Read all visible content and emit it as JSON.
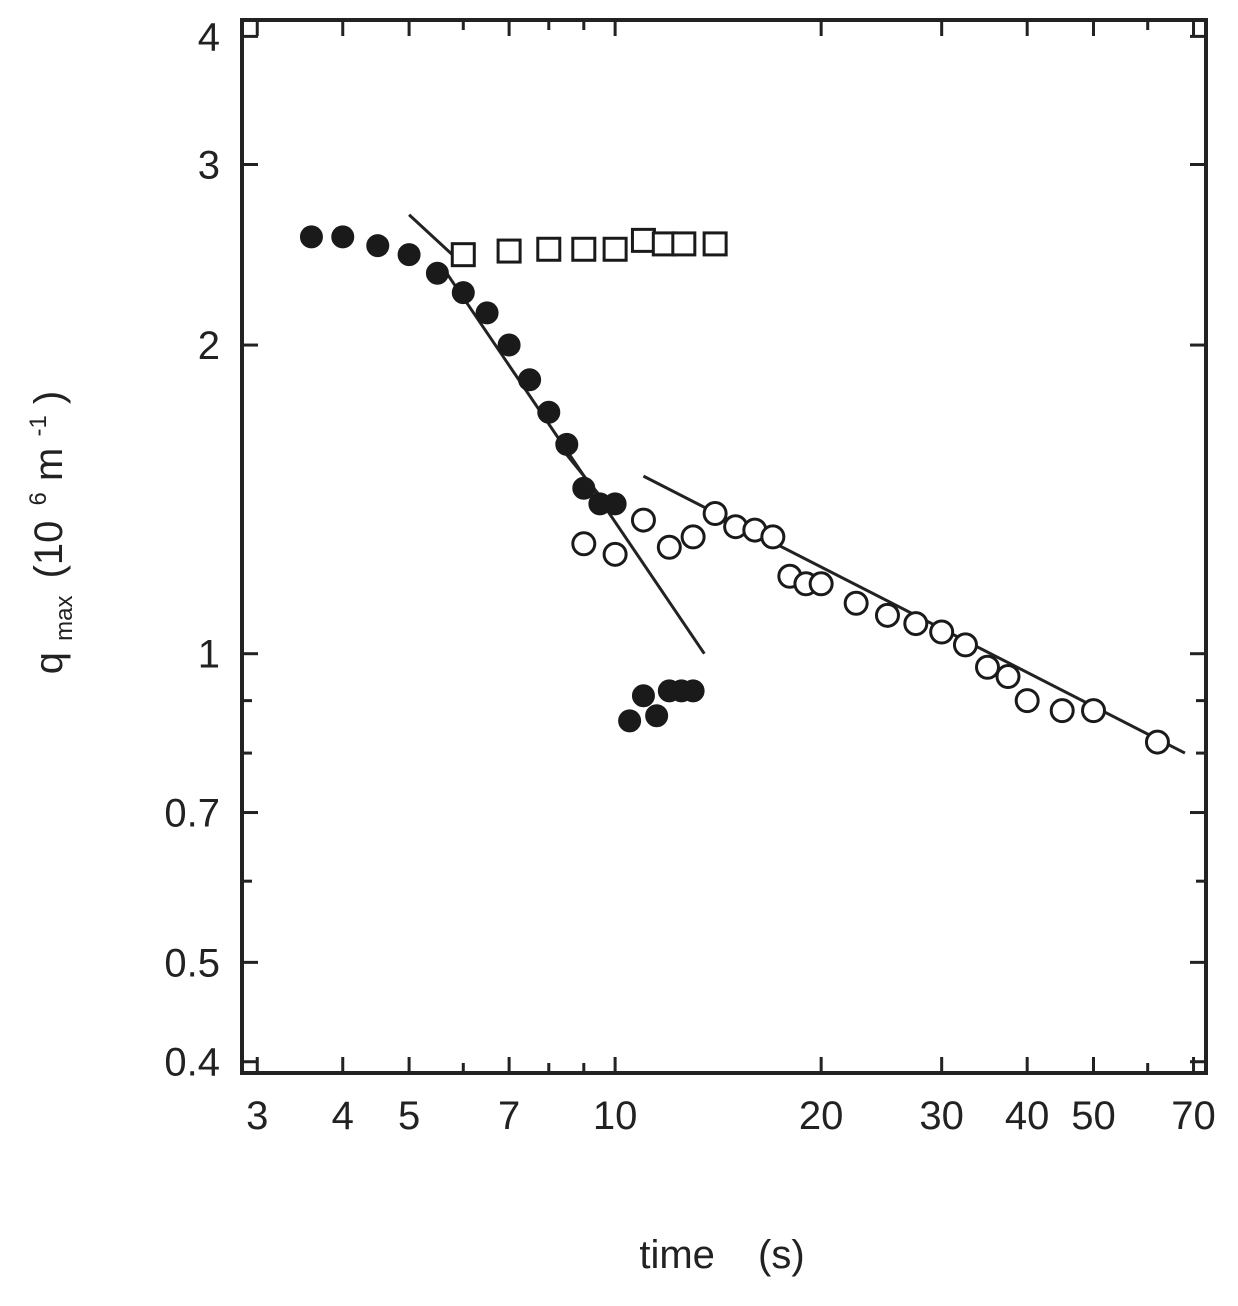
{
  "chart_data": {
    "type": "scatter",
    "title": "",
    "xscale": "log",
    "yscale": "log",
    "xlim": [
      2.85,
      73
    ],
    "ylim": [
      0.39,
      4.15
    ],
    "xticks": [
      3,
      4,
      5,
      7,
      10,
      20,
      30,
      40,
      50,
      70
    ],
    "xtick_labels": [
      "3",
      "4",
      "5",
      "7",
      "10",
      "20",
      "30",
      "40",
      "50",
      "70"
    ],
    "xminor_ticks": [
      6,
      8,
      9,
      60
    ],
    "yticks": [
      0.4,
      0.5,
      0.7,
      1,
      2,
      3,
      4
    ],
    "ytick_labels": [
      "0.4",
      "0.5",
      "0.7",
      "1",
      "2",
      "3",
      "4"
    ],
    "yminor_ticks": [
      0.6,
      0.8,
      0.9
    ],
    "xlabel": {
      "text": "time",
      "unit": "(s)"
    },
    "ylabel": {
      "base": "q",
      "sub": "max",
      "unit_open": "(10",
      "exp": "6",
      "unit_mid": " m",
      "unit_exp": "-1",
      "unit_close": ")"
    },
    "grid": false,
    "legend": "none",
    "series": [
      {
        "marker": "filled-circle",
        "x": [
          3.6,
          4.0,
          4.5,
          5.0,
          5.5,
          6.0,
          6.5,
          7.0,
          7.5,
          8.0,
          8.5,
          9.0,
          9.5,
          10.0,
          10.5,
          11.0,
          11.5,
          12.0,
          12.5,
          13.0
        ],
        "y": [
          2.55,
          2.55,
          2.5,
          2.45,
          2.35,
          2.25,
          2.15,
          2.0,
          1.85,
          1.72,
          1.6,
          1.45,
          1.4,
          1.4,
          0.86,
          0.91,
          0.87,
          0.92,
          0.92,
          0.92
        ]
      },
      {
        "marker": "open-square",
        "x": [
          6.0,
          7.0,
          8.0,
          9.0,
          10.0,
          11.0,
          11.8,
          12.6,
          14.0
        ],
        "y": [
          2.45,
          2.47,
          2.48,
          2.48,
          2.48,
          2.53,
          2.51,
          2.51,
          2.51
        ]
      },
      {
        "marker": "open-circle",
        "x": [
          9.0,
          10.0,
          11.0,
          12.0,
          13.0,
          14.0,
          15.0,
          16.0,
          17.0,
          18.0,
          19.0,
          20.0,
          22.5,
          25.0,
          27.5,
          30.0,
          32.5,
          35.0,
          37.5,
          40.0,
          45.0,
          50.0,
          62.0
        ],
        "y": [
          1.28,
          1.25,
          1.35,
          1.27,
          1.3,
          1.37,
          1.33,
          1.32,
          1.3,
          1.19,
          1.17,
          1.17,
          1.12,
          1.09,
          1.07,
          1.05,
          1.02,
          0.97,
          0.95,
          0.9,
          0.88,
          0.88,
          0.82
        ]
      }
    ],
    "fit_lines": [
      {
        "x": [
          5.0,
          5.9
        ],
        "y": [
          2.68,
          2.42
        ]
      },
      {
        "x": [
          5.65,
          13.5
        ],
        "y": [
          2.36,
          1.0
        ]
      },
      {
        "x": [
          8.2,
          9.8
        ],
        "y": [
          1.61,
          1.39
        ]
      },
      {
        "x": [
          11.0,
          68.0
        ],
        "y": [
          1.49,
          0.8
        ]
      }
    ]
  }
}
